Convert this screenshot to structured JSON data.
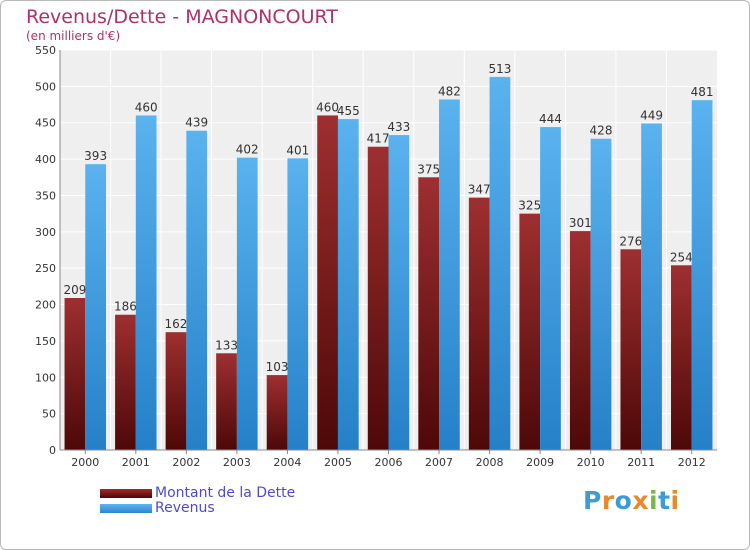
{
  "page": {
    "title": "Revenus/Dette - MAGNONCOURT",
    "subtitle": "(en milliers d'€)",
    "logo_text": "Proxiti",
    "logo_colors": [
      "#3d9bd6",
      "#e8892b",
      "#3d9bd6",
      "#e8892b",
      "#7ab648",
      "#3d9bd6",
      "#e8892b"
    ]
  },
  "chart_data": {
    "type": "bar",
    "title": "Revenus/Dette - MAGNONCOURT",
    "subtitle": "(en milliers d'€)",
    "categories": [
      "2000",
      "2001",
      "2002",
      "2003",
      "2004",
      "2005",
      "2006",
      "2007",
      "2008",
      "2009",
      "2010",
      "2011",
      "2012"
    ],
    "series": [
      {
        "name": "Montant de la Dette",
        "color": "#7a1a1a",
        "values": [
          209,
          186,
          162,
          133,
          103,
          460,
          417,
          375,
          347,
          325,
          301,
          276,
          254
        ]
      },
      {
        "name": "Revenus",
        "color": "#3d9be0",
        "values": [
          393,
          460,
          439,
          402,
          401,
          455,
          433,
          482,
          513,
          444,
          428,
          449,
          481
        ]
      }
    ],
    "ylim": [
      0,
      550
    ],
    "yticks": [
      0,
      50,
      100,
      150,
      200,
      250,
      300,
      350,
      400,
      450,
      500,
      550
    ],
    "grid": true,
    "legend": "bottom-left",
    "xlabel": "",
    "ylabel": ""
  }
}
